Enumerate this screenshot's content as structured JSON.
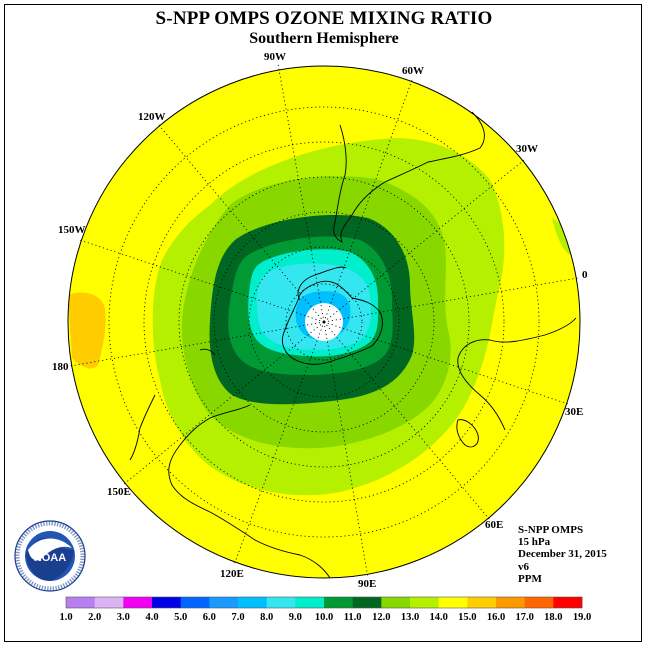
{
  "title": "S-NPP OMPS OZONE MIXING RATIO",
  "subtitle": "Southern Hemisphere",
  "longitude_labels": [
    "90W",
    "60W",
    "30W",
    "0",
    "30E",
    "60E",
    "90E",
    "120E",
    "150E",
    "180",
    "150W",
    "120W"
  ],
  "info": {
    "instrument": "S-NPP OMPS",
    "level": "15 hPa",
    "date": "December 31, 2015",
    "version": "v6",
    "units": "PPM"
  },
  "logo": {
    "text": "NOAA",
    "ring_text": "NATIONAL OCEANIC AND ATMOSPHERIC ADMINISTRATION · U.S. DEPARTMENT OF COMMERCE"
  },
  "colorbar": {
    "ticks": [
      "1.0",
      "2.0",
      "3.0",
      "4.0",
      "5.0",
      "6.0",
      "7.0",
      "8.0",
      "9.0",
      "10.0",
      "11.0",
      "12.0",
      "13.0",
      "14.0",
      "15.0",
      "16.0",
      "17.0",
      "18.0",
      "19.0"
    ],
    "colors": [
      "#b77ff0",
      "#dcb3f5",
      "#f200f2",
      "#0000e6",
      "#0066ff",
      "#1a99ff",
      "#00bfff",
      "#33e6f0",
      "#00eecc",
      "#009933",
      "#006622",
      "#88d800",
      "#b5f000",
      "#ffff00",
      "#ffcc00",
      "#ff9900",
      "#ff6600",
      "#ff0000",
      "#8b5a2b"
    ]
  },
  "chart_data": {
    "type": "heatmap",
    "projection": "south polar stereographic",
    "variable": "ozone mixing ratio",
    "units": "PPM",
    "pressure_level": "15 hPa",
    "color_levels": [
      1.0,
      2.0,
      3.0,
      4.0,
      5.0,
      6.0,
      7.0,
      8.0,
      9.0,
      10.0,
      11.0,
      12.0,
      13.0,
      14.0,
      15.0,
      16.0,
      17.0,
      18.0,
      19.0
    ],
    "field_summary": [
      {
        "region": "polar cap / no data",
        "value_range": "none"
      },
      {
        "region": "inner vortex core",
        "value_range": [
          7.0,
          8.0
        ]
      },
      {
        "region": "vortex core",
        "value_range": [
          8.0,
          9.0
        ]
      },
      {
        "region": "vortex collar inner",
        "value_range": [
          9.0,
          10.0
        ]
      },
      {
        "region": "vortex collar",
        "value_range": [
          10.0,
          11.0
        ]
      },
      {
        "region": "vortex edge",
        "value_range": [
          11.0,
          12.0
        ]
      },
      {
        "region": "transition ring",
        "value_range": [
          12.0,
          13.0
        ]
      },
      {
        "region": "mid latitudes",
        "value_range": [
          13.0,
          14.0
        ]
      },
      {
        "region": "outer disc",
        "value_range": [
          14.0,
          15.0
        ]
      },
      {
        "region": "patch near 160W",
        "value_range": [
          15.0,
          16.0
        ]
      }
    ]
  }
}
